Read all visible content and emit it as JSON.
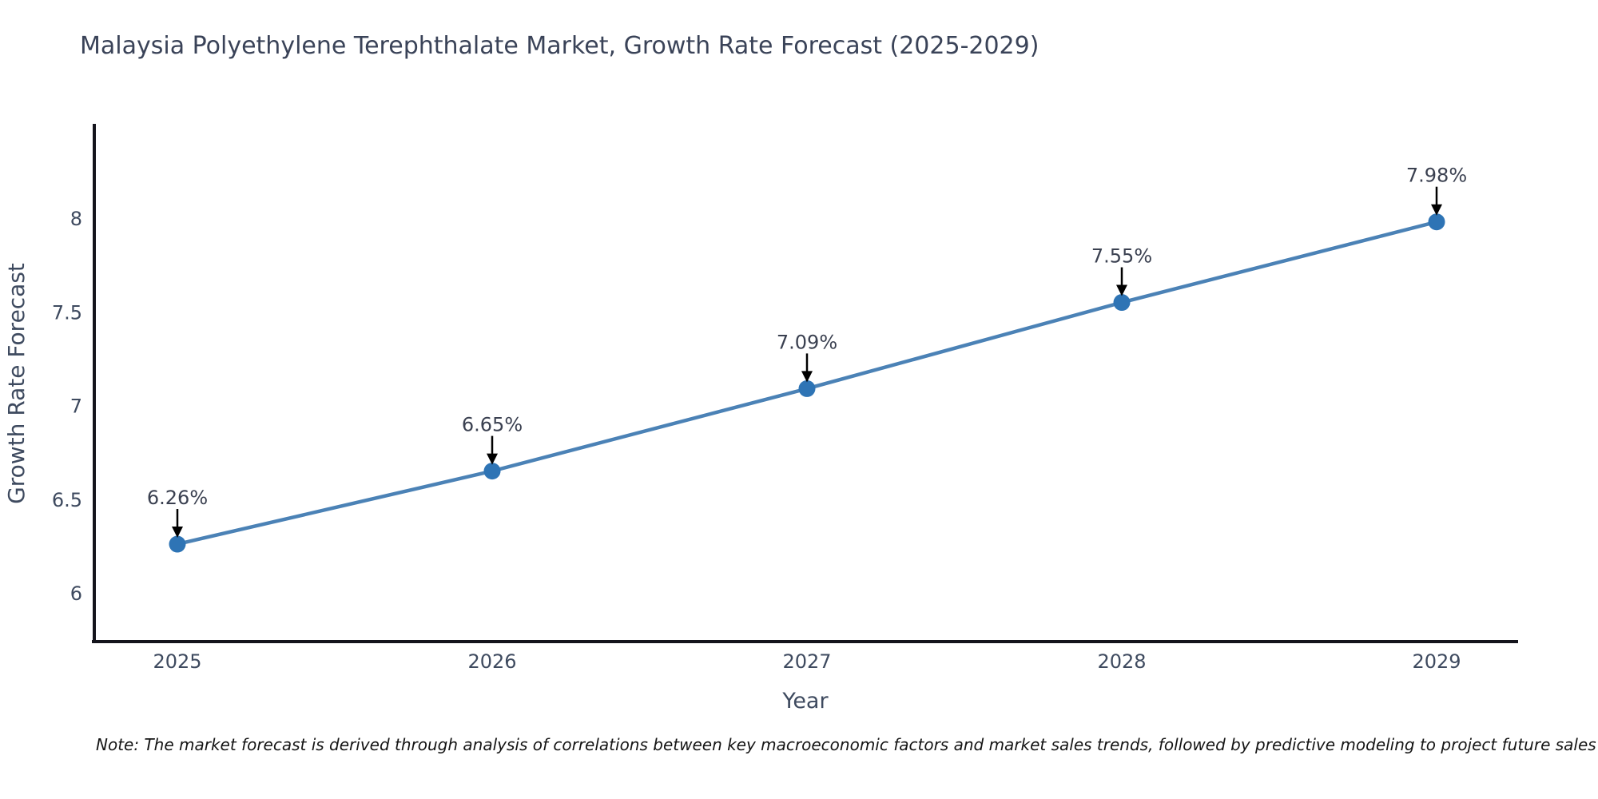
{
  "title": "Malaysia Polyethylene Terephthalate Market, Growth Rate Forecast (2025-2029)",
  "note": "Note: The market forecast is derived through analysis of correlations between key macroeconomic factors and market sales trends, followed by predictive modeling to project future sales",
  "chart_data": {
    "type": "line",
    "title": "Malaysia Polyethylene Terephthalate Market, Growth Rate Forecast (2025-2029)",
    "x": [
      2025,
      2026,
      2027,
      2028,
      2029
    ],
    "values": [
      6.26,
      6.65,
      7.09,
      7.55,
      7.98
    ],
    "point_labels": [
      "6.26%",
      "6.65%",
      "7.09%",
      "7.55%",
      "7.98%"
    ],
    "xlabel": "Year",
    "ylabel": "Growth Rate Forecast",
    "y_ticks": [
      6,
      6.5,
      7,
      7.5,
      8
    ],
    "ylim": [
      5.74,
      8.5
    ],
    "grid": false,
    "legend": false,
    "annotation_style": "black-down-arrow-above-point",
    "colors": {
      "line": "#4b82b6",
      "marker": "#2e74b5",
      "axis": "#14141c",
      "text": "#3e4a5f",
      "point_label_text": "#3a4050",
      "annotation_arrow": "#000000",
      "title_text": "#3a4358",
      "background": "#ffffff"
    }
  }
}
